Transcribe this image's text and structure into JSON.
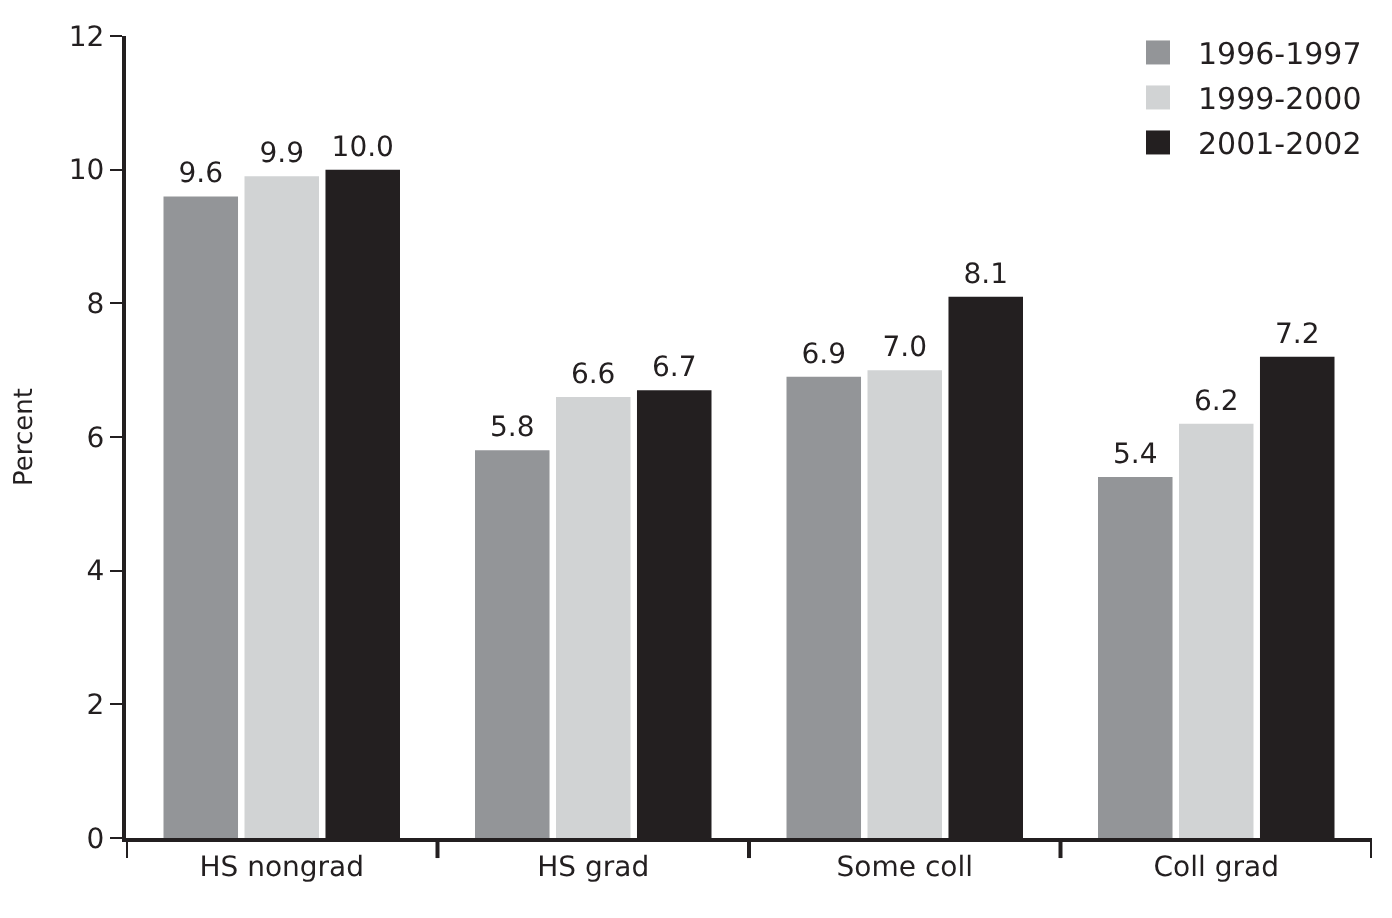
{
  "chart_data": {
    "type": "bar",
    "ylabel": "Percent",
    "categories": [
      "HS nongrad",
      "HS grad",
      "Some coll",
      "Coll grad"
    ],
    "series": [
      {
        "name": "1996-1997",
        "color": "#939598",
        "values": [
          9.6,
          5.8,
          6.9,
          5.4
        ],
        "value_labels": [
          "9.6",
          "5.8",
          "6.9",
          "5.4"
        ]
      },
      {
        "name": "1999-2000",
        "color": "#d1d3d4",
        "values": [
          9.9,
          6.6,
          7.0,
          6.2
        ],
        "value_labels": [
          "9.9",
          "6.6",
          "7.0",
          "6.2"
        ]
      },
      {
        "name": "2001-2002",
        "color": "#231f20",
        "values": [
          10.0,
          6.7,
          8.1,
          7.2
        ],
        "value_labels": [
          "10.0",
          "6.7",
          "8.1",
          "7.2"
        ]
      }
    ],
    "ylim": [
      0,
      12
    ],
    "yticks": [
      0,
      2,
      4,
      6,
      8,
      10,
      12
    ],
    "legend": "top right"
  }
}
